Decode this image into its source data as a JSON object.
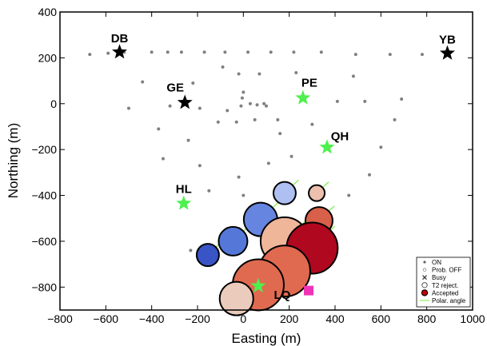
{
  "chart_data": {
    "type": "scatter",
    "xlabel": "Easting (m)",
    "ylabel": "Northing (m)",
    "xlim": [
      -800,
      1000
    ],
    "ylim": [
      -900,
      400
    ],
    "xticks": [
      "−800",
      "−600",
      "−400",
      "−200",
      "0",
      "200",
      "400",
      "600",
      "800",
      "1000"
    ],
    "yticks": [
      "400",
      "200",
      "0",
      "−200",
      "−400",
      "−600",
      "−800"
    ],
    "grid": false,
    "legend_position": "bottom-right",
    "legend": [
      {
        "label": "ON",
        "marker": "small-dot"
      },
      {
        "label": "Prob. OFF",
        "marker": "small-hollow-dot"
      },
      {
        "label": "Busy",
        "marker": "x"
      },
      {
        "label": "T2 reject.",
        "marker": "hollow-circle"
      },
      {
        "label": "Accepted",
        "marker": "filled-circle"
      },
      {
        "label": "Polar. angle",
        "marker": "line"
      }
    ],
    "colors": {
      "on_dots": "#808080",
      "star_black": "#000000",
      "star_green": "#4ef04e",
      "polar_line": "#8ff060",
      "square": "#f033b6"
    },
    "stations": [
      {
        "label": "DB",
        "x": -540,
        "y": 225,
        "color": "black"
      },
      {
        "label": "YB",
        "x": 890,
        "y": 220,
        "color": "black"
      },
      {
        "label": "GE",
        "x": -255,
        "y": 5,
        "color": "black"
      },
      {
        "label": "PE",
        "x": 260,
        "y": 25,
        "color": "green"
      },
      {
        "label": "QH",
        "x": 365,
        "y": -190,
        "color": "green"
      },
      {
        "label": "HL",
        "x": -260,
        "y": -435,
        "color": "green"
      },
      {
        "label": "LQ",
        "x": 65,
        "y": -795,
        "color": "green"
      }
    ],
    "on_stations": [
      [
        -670,
        215
      ],
      [
        -590,
        220
      ],
      [
        -520,
        225
      ],
      [
        -400,
        225
      ],
      [
        -330,
        225
      ],
      [
        -270,
        225
      ],
      [
        -170,
        225
      ],
      [
        -80,
        225
      ],
      [
        20,
        225
      ],
      [
        120,
        225
      ],
      [
        220,
        225
      ],
      [
        340,
        225
      ],
      [
        490,
        215
      ],
      [
        640,
        215
      ],
      [
        780,
        215
      ],
      [
        -440,
        95
      ],
      [
        -220,
        90
      ],
      [
        -90,
        160
      ],
      [
        -20,
        130
      ],
      [
        70,
        130
      ],
      [
        230,
        135
      ],
      [
        -500,
        -20
      ],
      [
        -320,
        -10
      ],
      [
        -190,
        -20
      ],
      [
        -70,
        -30
      ],
      [
        -10,
        -10
      ],
      [
        -5,
        25
      ],
      [
        0,
        50
      ],
      [
        30,
        0
      ],
      [
        60,
        -5
      ],
      [
        90,
        0
      ],
      [
        100,
        -10
      ],
      [
        -30,
        -80
      ],
      [
        50,
        -70
      ],
      [
        150,
        -70
      ],
      [
        160,
        -130
      ],
      [
        300,
        -90
      ],
      [
        410,
        10
      ],
      [
        530,
        10
      ],
      [
        690,
        20
      ],
      [
        660,
        -70
      ],
      [
        600,
        -190
      ],
      [
        480,
        120
      ],
      [
        -370,
        -110
      ],
      [
        -240,
        -160
      ],
      [
        -110,
        -80
      ],
      [
        -350,
        -240
      ],
      [
        -190,
        -270
      ],
      [
        -150,
        -380
      ],
      [
        -20,
        -320
      ],
      [
        0,
        -400
      ],
      [
        110,
        -260
      ],
      [
        210,
        -230
      ],
      [
        460,
        -400
      ],
      [
        550,
        -310
      ],
      [
        -230,
        -640
      ]
    ],
    "events": [
      {
        "x": 180,
        "y": -390,
        "size": 14,
        "fill": "#aebff2"
      },
      {
        "x": 320,
        "y": -390,
        "size": 10,
        "fill": "#ecc0ad"
      },
      {
        "x": 75,
        "y": -505,
        "size": 21,
        "fill": "#6685e0"
      },
      {
        "x": 330,
        "y": -510,
        "size": 17,
        "fill": "#d85f4a"
      },
      {
        "x": -45,
        "y": -600,
        "size": 18,
        "fill": "#5578d8"
      },
      {
        "x": 180,
        "y": -600,
        "size": 30,
        "fill": "#f0b69a"
      },
      {
        "x": 300,
        "y": -630,
        "size": 32,
        "fill": "#b0081e"
      },
      {
        "x": -155,
        "y": -660,
        "size": 14,
        "fill": "#3854c5"
      },
      {
        "x": 180,
        "y": -730,
        "size": 32,
        "fill": "#e06a50"
      },
      {
        "x": 65,
        "y": -790,
        "size": 32,
        "fill": "#e06a50"
      },
      {
        "x": -30,
        "y": -850,
        "size": 21,
        "fill": "#ebcbbc"
      }
    ],
    "marker_square": {
      "x": 285,
      "y": -815
    }
  }
}
